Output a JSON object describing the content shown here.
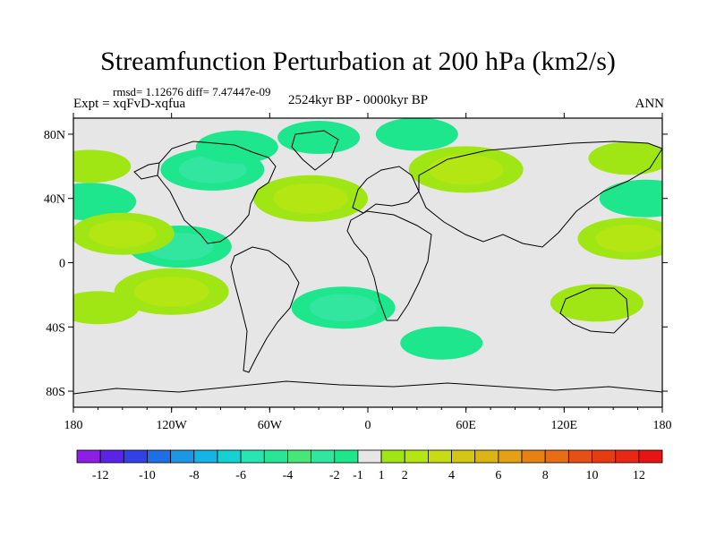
{
  "title": "Streamfunction Perturbation at 200 hPa (km2/s)",
  "stats": "rmsd= 1.12676 diff= 7.47447e-09",
  "experiment": "Expt = xqFvD-xqfua",
  "period": "2524kyr BP - 0000kyr BP",
  "season": "ANN",
  "chart_data": {
    "type": "contour-map",
    "title": "Streamfunction Perturbation at 200 hPa (km2/s)",
    "xlabel": "",
    "ylabel": "",
    "xlim": [
      -180,
      180
    ],
    "ylim": [
      -90,
      90
    ],
    "x_ticks": [
      {
        "value": -180,
        "label": "180"
      },
      {
        "value": -120,
        "label": "120W"
      },
      {
        "value": -60,
        "label": "60W"
      },
      {
        "value": 0,
        "label": "0"
      },
      {
        "value": 60,
        "label": "60E"
      },
      {
        "value": 120,
        "label": "120E"
      },
      {
        "value": 180,
        "label": "180"
      }
    ],
    "y_ticks": [
      {
        "value": 80,
        "label": "80N"
      },
      {
        "value": 40,
        "label": "40N"
      },
      {
        "value": 0,
        "label": "0"
      },
      {
        "value": -40,
        "label": "40S"
      },
      {
        "value": -80,
        "label": "80S"
      }
    ],
    "colorbar": {
      "boundaries": [
        -13,
        -12,
        -11,
        -10,
        -9,
        -8,
        -7,
        -6,
        -5,
        -4,
        -3,
        -2,
        -1,
        1,
        2,
        3,
        4,
        5,
        6,
        7,
        8,
        9,
        10,
        11,
        12,
        13
      ],
      "labels": [
        "-12",
        "-10",
        "-8",
        "-6",
        "-4",
        "-2",
        "-1",
        "1",
        "2",
        "4",
        "6",
        "8",
        "10",
        "12"
      ],
      "label_values": [
        -12,
        -10,
        -8,
        -6,
        -4,
        -2,
        -1,
        1,
        2,
        4,
        6,
        8,
        10,
        12
      ],
      "colors": [
        "#8c1ee6",
        "#5a23e6",
        "#3241e6",
        "#1e6ee6",
        "#1e96e6",
        "#14b4e6",
        "#14d2d2",
        "#28e6b4",
        "#28e696",
        "#46e678",
        "#32e6a0",
        "#1ee68c",
        "#e6e6e6",
        "#a0e614",
        "#b4e614",
        "#c8dc14",
        "#d2c814",
        "#dcb414",
        "#e6a014",
        "#e68214",
        "#e66e14",
        "#e65014",
        "#e63c14",
        "#e62814",
        "#e61414"
      ]
    },
    "anomalies": [
      {
        "name": "N Pacific / N America negative",
        "lon": -95,
        "lat": 58,
        "value": -2.5
      },
      {
        "name": "Arctic North America negative",
        "lon": -80,
        "lat": 72,
        "value": -1.5
      },
      {
        "name": "Greenland negative",
        "lon": -30,
        "lat": 78,
        "value": -1.5
      },
      {
        "name": "Barents negative",
        "lon": 30,
        "lat": 80,
        "value": -1.5
      },
      {
        "name": "Tropical E Pacific negative",
        "lon": -115,
        "lat": 10,
        "value": -2.5
      },
      {
        "name": "Subtropical W Pacific negative",
        "lon": -170,
        "lat": 38,
        "value": -2
      },
      {
        "name": "NW Pacific negative",
        "lon": 170,
        "lat": 40,
        "value": -2
      },
      {
        "name": "South Atlantic negative",
        "lon": -15,
        "lat": -28,
        "value": -2.5
      },
      {
        "name": "S Indian Ocean negative",
        "lon": 45,
        "lat": -50,
        "value": -1.5
      },
      {
        "name": "Eurasia positive",
        "lon": 60,
        "lat": 58,
        "value": 3
      },
      {
        "name": "N Atlantic positive",
        "lon": -35,
        "lat": 40,
        "value": 3
      },
      {
        "name": "Central Pacific subtropical positive",
        "lon": -150,
        "lat": 18,
        "value": 2.5
      },
      {
        "name": "Western Pacific positive",
        "lon": 160,
        "lat": 15,
        "value": 2.5
      },
      {
        "name": "S Pacific positive",
        "lon": -120,
        "lat": -18,
        "value": 3
      },
      {
        "name": "Australia positive",
        "lon": 140,
        "lat": -25,
        "value": 2
      },
      {
        "name": "SE Pacific positive",
        "lon": -165,
        "lat": -28,
        "value": 1.5
      },
      {
        "name": "NE Pacific high-lat positive",
        "lon": -170,
        "lat": 60,
        "value": 1.5
      },
      {
        "name": "E Asia high-lat positive",
        "lon": 160,
        "lat": 65,
        "value": 1.5
      }
    ]
  }
}
